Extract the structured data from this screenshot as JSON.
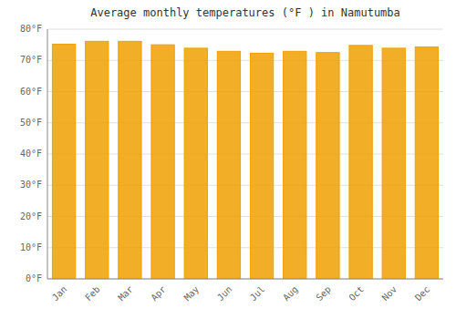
{
  "chart_data": {
    "type": "bar",
    "title": "Average monthly temperatures (°F ) in Namutumba",
    "categories": [
      "Jan",
      "Feb",
      "Mar",
      "Apr",
      "May",
      "Jun",
      "Jul",
      "Aug",
      "Sep",
      "Oct",
      "Nov",
      "Dec"
    ],
    "values": [
      75.2,
      76.1,
      76.1,
      75.0,
      73.9,
      72.9,
      72.3,
      72.9,
      72.5,
      74.8,
      73.9,
      74.3
    ],
    "color": "#F0A000",
    "ylim": [
      0,
      80
    ],
    "yticks": [
      {
        "value": 0,
        "label": "0°F"
      },
      {
        "value": 10,
        "label": "10°F"
      },
      {
        "value": 20,
        "label": "20°F"
      },
      {
        "value": 30,
        "label": "30°F"
      },
      {
        "value": 40,
        "label": "40°F"
      },
      {
        "value": 50,
        "label": "50°F"
      },
      {
        "value": 60,
        "label": "60°F"
      },
      {
        "value": 70,
        "label": "70°F"
      },
      {
        "value": 80,
        "label": "80°F"
      }
    ],
    "grid": true
  }
}
